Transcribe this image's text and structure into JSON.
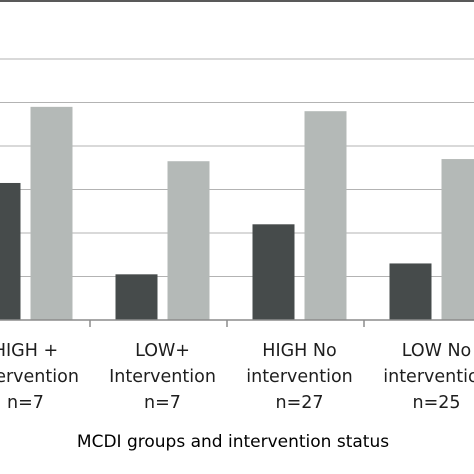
{
  "chart_data": {
    "type": "bar",
    "xlabel": "MCDI groups and intervention status",
    "ylabel": "",
    "ylim": [
      0,
      6
    ],
    "grid": true,
    "categories": [
      [
        "HIGH +",
        "Intervention",
        "n=7"
      ],
      [
        "LOW+",
        "Intervention",
        "n=7"
      ],
      [
        "HIGH No",
        "intervention",
        "n=27"
      ],
      [
        "LOW No",
        "intervention",
        "n=25"
      ]
    ],
    "series": [
      {
        "color": "#464b4b",
        "values": [
          3.15,
          1.05,
          2.2,
          1.3
        ]
      },
      {
        "color": "#b4b9b7",
        "values": [
          4.9,
          3.65,
          4.8,
          3.7
        ]
      }
    ],
    "colors": {
      "axis": "#8c8c8c",
      "grid": "#b3b3b3",
      "frame": "#595959"
    }
  }
}
